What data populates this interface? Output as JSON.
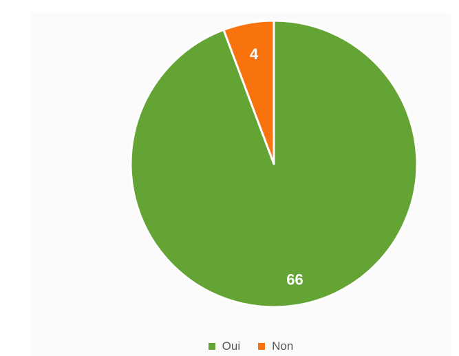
{
  "chart_data": {
    "type": "pie",
    "title": "",
    "slices": [
      {
        "label": "Oui",
        "value": 66,
        "color": "#63a435"
      },
      {
        "label": "Non",
        "value": 4,
        "color": "#f8730d"
      }
    ],
    "legend": {
      "placement": "bottom",
      "items": [
        "Oui",
        "Non"
      ]
    },
    "start_angle_deg": 0,
    "direction": "clockwise",
    "slice_border_color": "#ffffff"
  }
}
